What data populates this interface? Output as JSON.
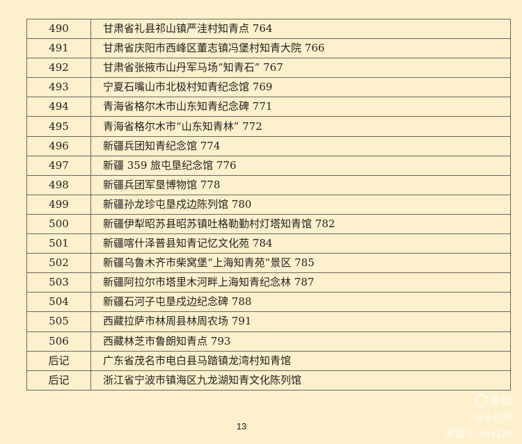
{
  "rows": [
    {
      "no": "490",
      "name": "甘肃省礼县祁山镇严洼村知青点 764"
    },
    {
      "no": "491",
      "name": "甘肃省庆阳市西峰区董志镇冯堡村知青大院 766"
    },
    {
      "no": "492",
      "name": "甘肃省张掖市山丹军马场“知青石” 767"
    },
    {
      "no": "493",
      "name": "宁夏石嘴山市北极村知青纪念馆 769"
    },
    {
      "no": "494",
      "name": "青海省格尔木市山东知青纪念碑 771"
    },
    {
      "no": "495",
      "name": "青海省格尔木市“山东知青林” 772"
    },
    {
      "no": "496",
      "name": "新疆兵团知青纪念馆 774"
    },
    {
      "no": "497",
      "name": "新疆 359 旅屯垦纪念馆 776"
    },
    {
      "no": "498",
      "name": "新疆兵团军垦博物馆 778"
    },
    {
      "no": "499",
      "name": "新疆孙龙珍屯垦戍边陈列馆 780"
    },
    {
      "no": "500",
      "name": "新疆伊犁昭苏县昭苏镇吐格勒勤村灯塔知青馆 782"
    },
    {
      "no": "501",
      "name": "新疆喀什泽普县知青记忆文化苑 784"
    },
    {
      "no": "502",
      "name": "新疆乌鲁木齐市柴窝堡“上海知青苑”景区 785"
    },
    {
      "no": "503",
      "name": "新疆阿拉尔市塔里木河畔上海知青纪念林 787"
    },
    {
      "no": "504",
      "name": "新疆石河子屯垦戍边纪念碑 788"
    },
    {
      "no": "505",
      "name": "西藏拉萨市林周县林周农场 791"
    },
    {
      "no": "506",
      "name": "西藏林芝市鲁朗知青点 793"
    },
    {
      "no": "后记",
      "name": "广东省茂名市电白县马踏镇龙湾村知青馆"
    },
    {
      "no": "后记",
      "name": "浙江省宁波市镇海区九龙湖知青文化陈列馆"
    }
  ],
  "page_number": "13",
  "watermark": {
    "brand": "美篇",
    "author": "@王礼民",
    "account": "美篇号: 414138",
    "icon": "meipian-logo-icon"
  },
  "colors": {
    "background": "#fdf0cc",
    "border": "#555555"
  }
}
